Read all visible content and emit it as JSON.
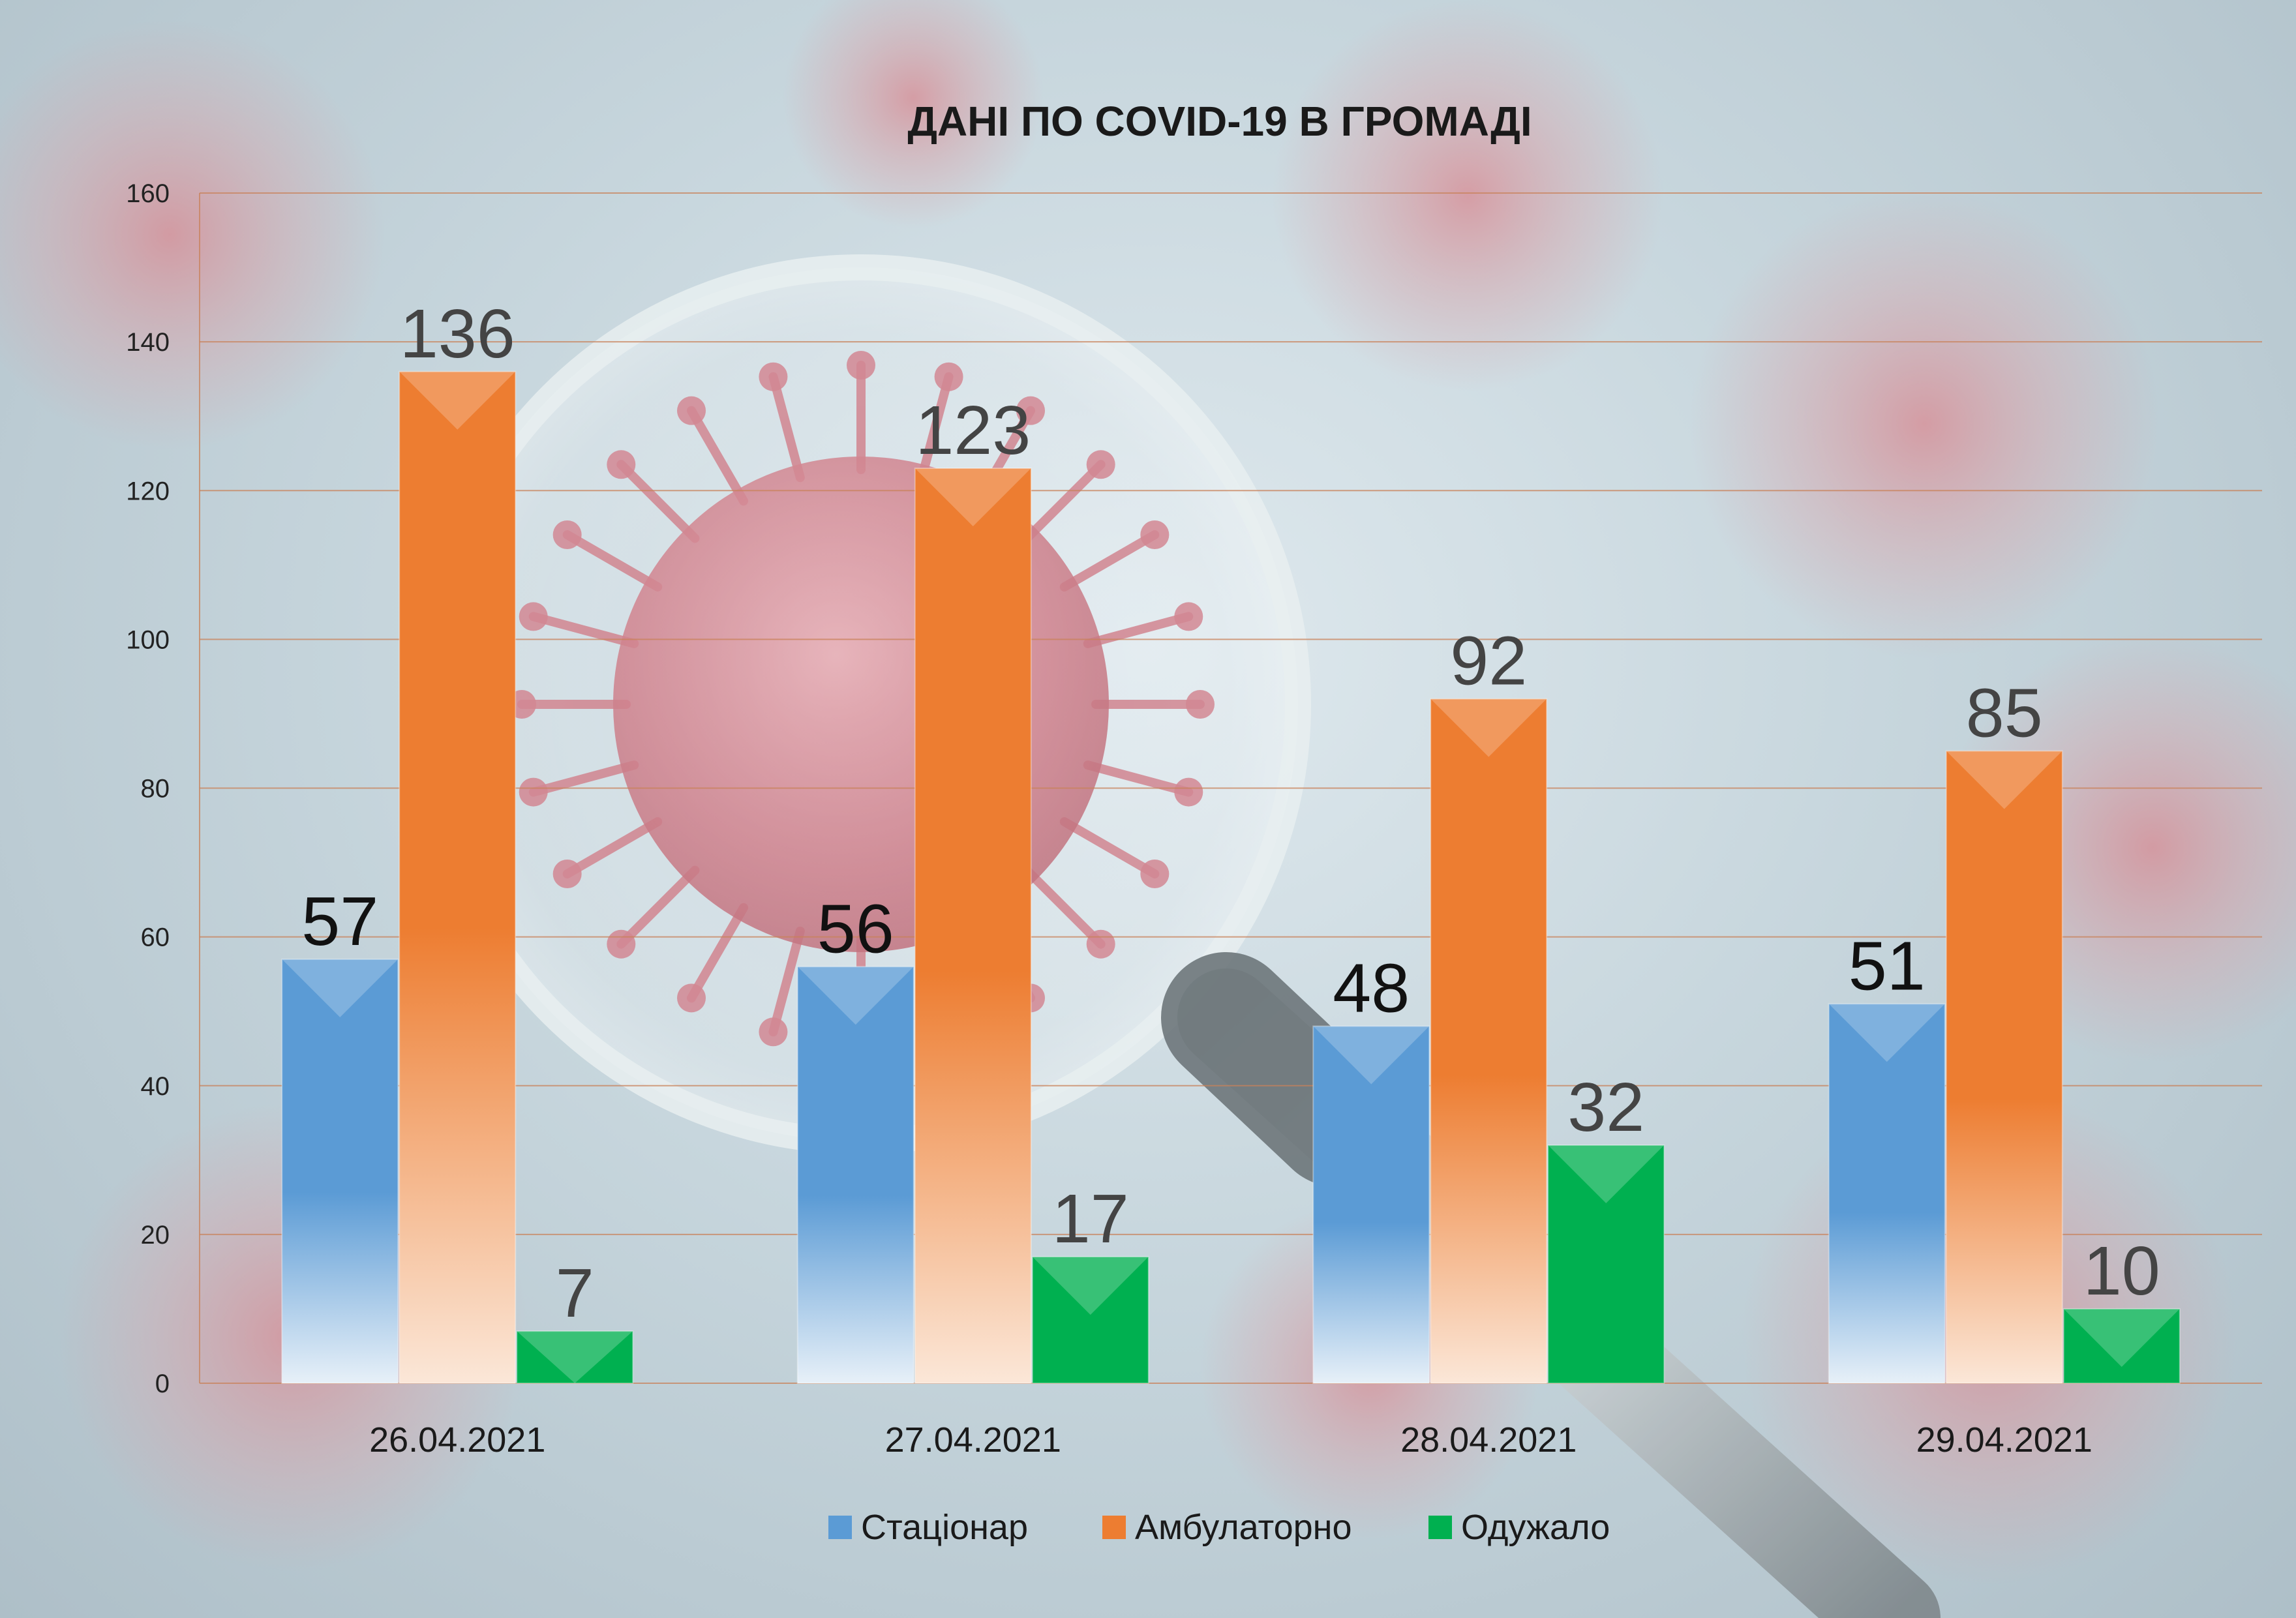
{
  "chart_data": {
    "type": "bar",
    "title": "ДАНІ ПО COVID-19 В ГРОМАДІ",
    "xlabel": "",
    "ylabel": "",
    "categories": [
      "26.04.2021",
      "27.04.2021",
      "28.04.2021",
      "29.04.2021"
    ],
    "series": [
      {
        "name": "Стаціонар",
        "values": [
          57,
          56,
          48,
          51
        ],
        "color": "#5b9bd5"
      },
      {
        "name": "Амбулаторно",
        "values": [
          136,
          123,
          92,
          85
        ],
        "color": "#ed7d31"
      },
      {
        "name": "Одужало",
        "values": [
          7,
          17,
          32,
          10
        ],
        "color": "#00b050"
      }
    ],
    "ylim": [
      0,
      160
    ],
    "yticks": [
      0,
      20,
      40,
      60,
      80,
      100,
      120,
      140,
      160
    ],
    "grid": true,
    "legend": "bottom",
    "data_labels": true
  }
}
